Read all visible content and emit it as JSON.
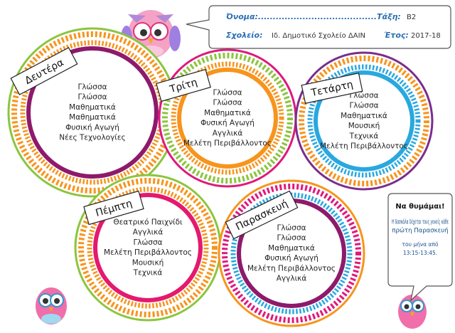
{
  "header": {
    "name_label": "Όνομα:........................................Τάξη:",
    "class_value": "Β2",
    "school_label": "Σχολείο:",
    "school_value": "Ιδ. Δημοτικό Σχολείο ΔΑΙΝ",
    "year_label": "Έτος:",
    "year_value": "2017-18"
  },
  "days": [
    {
      "name": "Δευτέρα",
      "subjects": [
        "Γλώσσα",
        "Γλώσσα",
        "Μαθηματικά",
        "Μαθηματικά",
        "Φυσική Αγωγή",
        "Νέες Τεχνολογίες"
      ]
    },
    {
      "name": "Τρίτη",
      "subjects": [
        "Γλώσσα",
        "Γλώσσα",
        "Μαθηματικά",
        "Φυσική Αγωγή",
        "Αγγλικά",
        "Μελέτη Περιβάλλοντος"
      ]
    },
    {
      "name": "Τετάρτη",
      "subjects": [
        "Γλώσσα",
        "Γλώσσα",
        "Μαθηματικά",
        "Μουσική",
        "Τεχνικά",
        "Μελέτη Περιβάλλοντος"
      ]
    },
    {
      "name": "Πέμπτη",
      "subjects": [
        "Θεατρικό Παιχνίδι",
        "Αγγλικά",
        "Γλώσσα",
        "Μελέτη Περιβάλλοντος",
        "Μουσική",
        "Τεχνικά"
      ]
    },
    {
      "name": "Παρασκευή",
      "subjects": [
        "Γλώσσα",
        "Γλώσσα",
        "Μαθηματικά",
        "Φυσική Αγωγή",
        "Μελέτη Περιβάλλοντος",
        "Αγγλικά"
      ]
    }
  ],
  "note": {
    "title": "Να θυμάμαι!",
    "lines": [
      "Η δασκάλα δέχεται τους γονείς κάθε",
      "πρώτη Παρασκευή",
      "του μήνα από",
      "13:15-13:45."
    ]
  }
}
